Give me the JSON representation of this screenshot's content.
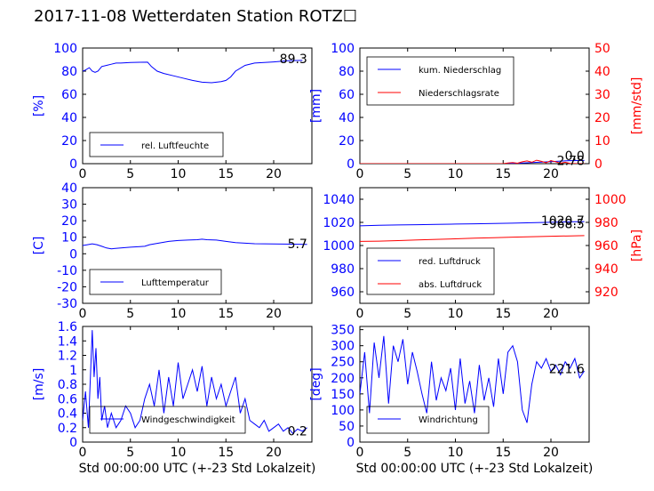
{
  "title": "2017-11-08 Wetterdaten Station ROTZ☐",
  "xlabel": "Std 00:00:00 UTC (+-23 Std Lokalzeit)",
  "chart_data": [
    {
      "id": "humidity",
      "type": "line",
      "ylabel": "[%]",
      "ylim": [
        0,
        100
      ],
      "yticks": [
        0,
        20,
        40,
        60,
        80,
        100
      ],
      "xlim": [
        0,
        24
      ],
      "xticks": [
        0,
        5,
        10,
        15,
        20
      ],
      "legend": [
        "rel. Luftfeuchte"
      ],
      "legend_position": "lower-left",
      "current_value": "89.3",
      "series": [
        {
          "name": "rel. Luftfeuchte",
          "color": "#0000ff",
          "x": [
            0,
            0.3,
            0.7,
            1.0,
            1.3,
            1.6,
            2.0,
            2.5,
            3.0,
            3.5,
            4.0,
            5.0,
            6.0,
            6.8,
            7.2,
            7.8,
            8.5,
            9.5,
            10.5,
            11.5,
            12.5,
            13.5,
            14.5,
            15.0,
            15.5,
            16.0,
            17.0,
            18.0,
            20.0,
            21.5,
            23.0
          ],
          "y": [
            80,
            81,
            83,
            80,
            79,
            80,
            84,
            85,
            86,
            87,
            87,
            87.5,
            87.7,
            87.8,
            84,
            80,
            78,
            76,
            74,
            72,
            70.5,
            70,
            71,
            72,
            75,
            80,
            85,
            87,
            88,
            89,
            89.3
          ]
        }
      ]
    },
    {
      "id": "precip",
      "type": "line",
      "ylabel": "[mm]",
      "ylim": [
        0,
        100
      ],
      "yticks": [
        0,
        20,
        40,
        60,
        80,
        100
      ],
      "ylabel2": "[mm/std]",
      "ylim2": [
        0,
        50
      ],
      "yticks2": [
        0,
        10,
        20,
        30,
        40,
        50
      ],
      "xlim": [
        0,
        24
      ],
      "xticks": [
        0,
        5,
        10,
        15,
        20
      ],
      "legend": [
        "kum. Niederschlag",
        "Niederschlagsrate"
      ],
      "legend_position": "upper-left",
      "current_value": "2.78",
      "current_value2": "0.0",
      "series": [
        {
          "name": "kum. Niederschlag",
          "color": "#0000ff",
          "axis": "left",
          "x": [
            0,
            5,
            10,
            15,
            16,
            17,
            18,
            19,
            20,
            21,
            22,
            23.5
          ],
          "y": [
            0,
            0,
            0,
            0,
            0.2,
            0.5,
            0.9,
            1.3,
            1.8,
            2.2,
            2.6,
            2.78
          ]
        },
        {
          "name": "Niederschlagsrate",
          "color": "#ff0000",
          "axis": "right",
          "x": [
            0,
            15,
            15.5,
            16,
            16.5,
            17,
            17.5,
            18,
            18.5,
            19,
            19.5,
            20,
            20.5,
            21,
            21.5,
            22,
            23,
            23.5
          ],
          "y": [
            0,
            0,
            0.3,
            0.5,
            0.2,
            0.8,
            1.2,
            0.6,
            1.5,
            1.0,
            0.4,
            1.3,
            0.8,
            0.2,
            0.6,
            0.1,
            0,
            0
          ]
        }
      ]
    },
    {
      "id": "temperature",
      "type": "line",
      "ylabel": "[C]",
      "ylim": [
        -30,
        40
      ],
      "yticks": [
        -30,
        -20,
        -10,
        0,
        10,
        20,
        30,
        40
      ],
      "xlim": [
        0,
        24
      ],
      "xticks": [
        0,
        5,
        10,
        15,
        20
      ],
      "legend": [
        "Lufttemperatur"
      ],
      "legend_position": "lower-left",
      "current_value": "5.7",
      "series": [
        {
          "name": "Lufttemperatur",
          "color": "#0000ff",
          "x": [
            0,
            0.5,
            1.0,
            1.5,
            2.0,
            2.5,
            3.0,
            4.0,
            5.0,
            6.0,
            6.5,
            7.0,
            8.0,
            9.0,
            10.0,
            11.0,
            12.0,
            12.5,
            13.0,
            14.0,
            15.0,
            16.0,
            17.0,
            18.0,
            20.0,
            22.0,
            23.5
          ],
          "y": [
            5,
            5.5,
            6,
            5.5,
            4.5,
            3.5,
            3,
            3.5,
            4,
            4.3,
            4.5,
            5.5,
            6.5,
            7.5,
            8,
            8.3,
            8.5,
            8.8,
            8.5,
            8.3,
            7.5,
            6.8,
            6.4,
            6.1,
            5.9,
            5.8,
            5.7
          ]
        }
      ]
    },
    {
      "id": "pressure",
      "type": "line",
      "ylabel": "",
      "ylim": [
        950,
        1050
      ],
      "yticks": [
        960,
        980,
        1000,
        1020,
        1040
      ],
      "ylabel2": "[hPa]",
      "ylim2": [
        910,
        1010
      ],
      "yticks2": [
        920,
        940,
        960,
        980,
        1000
      ],
      "xlim": [
        0,
        24
      ],
      "xticks": [
        0,
        5,
        10,
        15,
        20
      ],
      "legend": [
        "red. Luftdruck",
        "abs. Luftdruck"
      ],
      "legend_position": "lower-left",
      "current_value": "1020.7",
      "current_value2": "968.5",
      "series": [
        {
          "name": "red. Luftdruck",
          "color": "#0000ff",
          "axis": "left",
          "x": [
            0,
            2,
            4,
            6,
            8,
            10,
            12,
            14,
            16,
            18,
            20,
            22,
            23.5
          ],
          "y": [
            1017,
            1017.5,
            1017.8,
            1018,
            1018.2,
            1018.5,
            1018.8,
            1019,
            1019.3,
            1019.7,
            1020.1,
            1020.5,
            1020.7
          ]
        },
        {
          "name": "abs. Luftdruck",
          "color": "#ff0000",
          "axis": "right",
          "x": [
            0,
            2,
            4,
            6,
            8,
            10,
            12,
            14,
            16,
            18,
            20,
            22,
            23.5
          ],
          "y": [
            963.5,
            963.8,
            964.2,
            964.8,
            965.3,
            965.8,
            966.3,
            966.8,
            967.2,
            967.6,
            968.0,
            968.3,
            968.5
          ]
        }
      ]
    },
    {
      "id": "wind_speed",
      "type": "line",
      "ylabel": "[m/s]",
      "ylim": [
        0,
        1.6
      ],
      "yticks": [
        0,
        0.2,
        0.4,
        0.6,
        0.8,
        1.0,
        1.2,
        1.4,
        1.6
      ],
      "xlim": [
        0,
        24
      ],
      "xticks": [
        0,
        5,
        10,
        15,
        20
      ],
      "legend": [
        "Windgeschwindigkeit"
      ],
      "legend_position": "lower-left",
      "current_value": "0.2",
      "series": [
        {
          "name": "Windgeschwindigkeit",
          "color": "#0000ff",
          "x": [
            0,
            0.3,
            0.6,
            0.9,
            1.0,
            1.2,
            1.4,
            1.6,
            1.8,
            2.0,
            2.3,
            2.6,
            3.0,
            3.5,
            4.0,
            4.5,
            5.0,
            5.5,
            6.0,
            6.5,
            7.0,
            7.5,
            8.0,
            8.5,
            9.0,
            9.5,
            10.0,
            10.5,
            11.0,
            11.5,
            12.0,
            12.5,
            13.0,
            13.5,
            14.0,
            14.5,
            15.0,
            15.5,
            16.0,
            16.5,
            17.0,
            17.5,
            18.0,
            18.5,
            19.0,
            19.5,
            20.0,
            20.5,
            21.0,
            21.5,
            22.0,
            22.5,
            23.0,
            23.5
          ],
          "y": [
            0.3,
            0.7,
            0.2,
            1.2,
            1.55,
            0.9,
            1.3,
            0.6,
            0.9,
            0.3,
            0.5,
            0.2,
            0.4,
            0.2,
            0.3,
            0.5,
            0.4,
            0.2,
            0.3,
            0.6,
            0.8,
            0.5,
            1.0,
            0.4,
            0.9,
            0.5,
            1.1,
            0.6,
            0.8,
            1.0,
            0.7,
            1.05,
            0.5,
            0.9,
            0.6,
            0.8,
            0.5,
            0.7,
            0.9,
            0.4,
            0.6,
            0.3,
            0.25,
            0.2,
            0.3,
            0.15,
            0.2,
            0.25,
            0.15,
            0.2,
            0.12,
            0.18,
            0.15,
            0.2
          ]
        }
      ]
    },
    {
      "id": "wind_dir",
      "type": "line",
      "ylabel": "[deg]",
      "ylim": [
        0,
        360
      ],
      "yticks": [
        0,
        50,
        100,
        150,
        200,
        250,
        300,
        350
      ],
      "xlim": [
        0,
        24
      ],
      "xticks": [
        0,
        5,
        10,
        15,
        20
      ],
      "legend": [
        "Windrichtung"
      ],
      "legend_position": "lower-left",
      "current_value": "221.6",
      "series": [
        {
          "name": "Windrichtung",
          "color": "#0000ff",
          "x": [
            0,
            0.5,
            1.0,
            1.5,
            2.0,
            2.5,
            3.0,
            3.5,
            4.0,
            4.5,
            5.0,
            5.5,
            6.0,
            6.5,
            7.0,
            7.5,
            8.0,
            8.5,
            9.0,
            9.5,
            10.0,
            10.5,
            11.0,
            11.5,
            12.0,
            12.5,
            13.0,
            13.5,
            14.0,
            14.5,
            15.0,
            15.5,
            16.0,
            16.5,
            17.0,
            17.5,
            18.0,
            18.5,
            19.0,
            19.5,
            20.0,
            20.5,
            21.0,
            21.5,
            22.0,
            22.5,
            23.0,
            23.5
          ],
          "y": [
            150,
            280,
            90,
            310,
            200,
            330,
            120,
            300,
            250,
            320,
            180,
            280,
            220,
            150,
            90,
            250,
            130,
            200,
            160,
            230,
            100,
            260,
            120,
            190,
            90,
            240,
            130,
            200,
            110,
            260,
            150,
            280,
            300,
            250,
            100,
            60,
            180,
            250,
            230,
            260,
            220,
            240,
            210,
            250,
            230,
            260,
            200,
            221.6
          ]
        }
      ]
    }
  ]
}
